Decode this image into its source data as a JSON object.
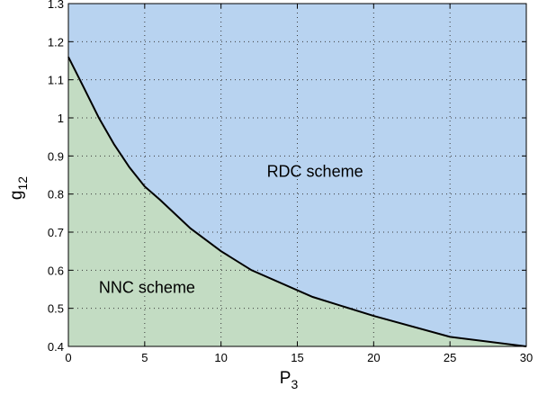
{
  "chart_data": {
    "type": "area",
    "title": "",
    "xlabel": "P",
    "xlabel_sub": "3",
    "ylabel": "g",
    "ylabel_sub": "12",
    "xlim": [
      0,
      30
    ],
    "ylim": [
      0.4,
      1.3
    ],
    "xticks": [
      0,
      5,
      10,
      15,
      20,
      25,
      30
    ],
    "yticks": [
      0.4,
      0.5,
      0.6,
      0.7,
      0.8,
      0.9,
      1,
      1.1,
      1.2,
      1.3
    ],
    "grid": true,
    "boundary": {
      "x": [
        0,
        1,
        2,
        3,
        4,
        5,
        6,
        8,
        10,
        12,
        16,
        20,
        25,
        30
      ],
      "y": [
        1.16,
        1.08,
        1.0,
        0.93,
        0.87,
        0.82,
        0.785,
        0.71,
        0.65,
        0.6,
        0.53,
        0.48,
        0.425,
        0.4
      ]
    },
    "regions": [
      {
        "label": "RDC scheme",
        "position": "above boundary",
        "color": "#b8d3f0",
        "label_at": [
          13,
          0.845
        ]
      },
      {
        "label": "NNC scheme",
        "position": "below boundary",
        "color": "#c3dcc3",
        "label_at": [
          2,
          0.54
        ]
      }
    ],
    "line_color": "#000000"
  }
}
